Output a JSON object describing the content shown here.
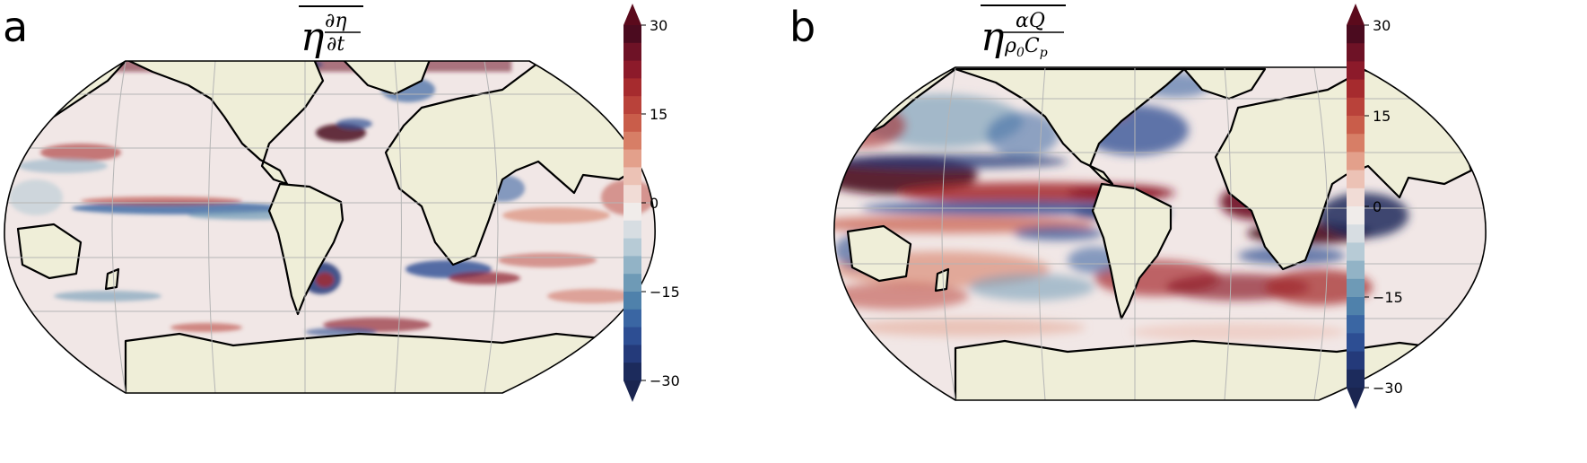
{
  "panels": [
    {
      "letter": "a",
      "title_numerator": "∂η",
      "title_denominator": "∂t"
    },
    {
      "letter": "b",
      "title_numerator": "αQ",
      "title_denominator_base": "ρ",
      "title_denominator_sub1": "0",
      "title_denominator_mid": "C",
      "title_denominator_sub2": "p"
    }
  ],
  "title_symbol": "η",
  "colorbar": {
    "ticks": [
      "30",
      "15",
      "0",
      "−15",
      "−30"
    ],
    "colors": [
      "#4b0b1f",
      "#6e1226",
      "#8c1a2a",
      "#a62b2e",
      "#b9423a",
      "#c95d4a",
      "#d77e66",
      "#e3a08b",
      "#ecc2b5",
      "#f1dcd6",
      "#f0ecea",
      "#d7dde2",
      "#b7cbd6",
      "#92b3c6",
      "#6e9ab6",
      "#4f81ab",
      "#3a66a3",
      "#2d4e93",
      "#243a7a",
      "#1c2b5c"
    ],
    "extend_top": "#5b0a1c",
    "extend_bottom": "#1a2550"
  },
  "palette": {
    "ocean_base": "#f1e7e6",
    "land": "#efeed8"
  }
}
